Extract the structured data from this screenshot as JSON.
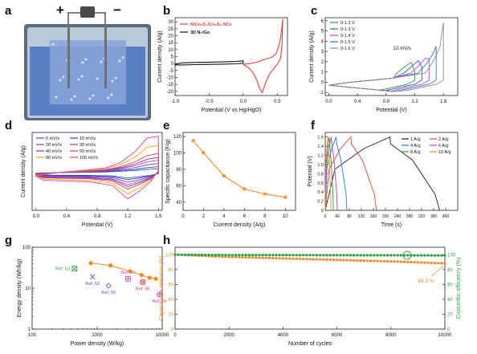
{
  "chart_data": [
    {
      "panel": "a",
      "type": "diagram",
      "letter": "a",
      "signs": {
        "plus": "+",
        "minus": "−"
      }
    },
    {
      "panel": "b",
      "type": "line",
      "letter": "b",
      "xlabel": "Potential (V vs Hg/HgO)",
      "ylabel": "Current density (A/g)",
      "xlim": [
        -1.0,
        0.65
      ],
      "ylim": [
        -23,
        33
      ],
      "xticks": [
        -1.0,
        -0.5,
        0.0,
        0.5
      ],
      "xtick_labels": [
        "-1.0",
        "-0.5",
        "0.0",
        "0.5"
      ],
      "yticks": [
        -20,
        -15,
        -10,
        -5,
        0,
        5,
        10,
        15,
        20,
        25,
        30
      ],
      "ytick_labels": [
        "-20",
        "-15",
        "-10",
        "-5",
        "0",
        "5",
        "10",
        "15",
        "20",
        "25",
        "30"
      ],
      "legend_position": "top-left",
      "series": [
        {
          "name": "NiCo₂S₄/Co₉S₈ NCs",
          "color": "#e8403a",
          "x": [
            0.0,
            0.1,
            0.2,
            0.28,
            0.35,
            0.42,
            0.48,
            0.52,
            0.55,
            0.57,
            0.58,
            0.57,
            0.55,
            0.5,
            0.44,
            0.38,
            0.32,
            0.28,
            0.24,
            0.2,
            0.15,
            0.08,
            0.0
          ],
          "y": [
            -0.5,
            0.0,
            1.0,
            2.5,
            3.5,
            4.5,
            7.0,
            12.0,
            19.0,
            27.0,
            32.0,
            14.0,
            4.0,
            -0.5,
            -4.0,
            -8.0,
            -15.0,
            -21.0,
            -18.0,
            -12.0,
            -7.0,
            -3.0,
            -0.5
          ]
        },
        {
          "name": "3D N-rGo",
          "color": "#111111",
          "x": [
            -1.0,
            -0.9,
            -0.7,
            -0.5,
            -0.3,
            -0.1,
            0.0,
            0.0,
            -0.1,
            -0.3,
            -0.5,
            -0.7,
            -0.9,
            -1.0,
            -1.0
          ],
          "y": [
            -0.5,
            0.5,
            0.8,
            1.0,
            1.2,
            1.5,
            2.0,
            0.2,
            -0.2,
            -0.4,
            -0.6,
            -0.8,
            -1.0,
            -1.0,
            -0.5
          ]
        }
      ]
    },
    {
      "panel": "c",
      "type": "line",
      "letter": "c",
      "xlabel": "Potential (V)",
      "ylabel": "Current density (A/g)",
      "annotation": "10 mV/s",
      "xlim": [
        -0.05,
        1.8
      ],
      "ylim": [
        -1.3,
        6.3
      ],
      "xticks": [
        0.0,
        0.4,
        0.8,
        1.2,
        1.6
      ],
      "xtick_labels": [
        "0.0",
        "0.4",
        "0.8",
        "1.2",
        "1.6"
      ],
      "yticks": [
        -1,
        0,
        1,
        2,
        3,
        4,
        5,
        6
      ],
      "ytick_labels": [
        "-1",
        "0",
        "1",
        "2",
        "3",
        "4",
        "5",
        "6"
      ],
      "legend_position": "top-left",
      "series": [
        {
          "name": "0-1.2 V",
          "color": "#2e9e45",
          "vmax": 1.2,
          "peak": 0.5
        },
        {
          "name": "0-1.3 V",
          "color": "#3b54c8",
          "vmax": 1.3,
          "peak": 1.0
        },
        {
          "name": "0-1.4 V",
          "color": "#c23bc2",
          "vmax": 1.4,
          "peak": 1.8
        },
        {
          "name": "0-1.5 V",
          "color": "#1f7fd6",
          "vmax": 1.5,
          "peak": 3.0
        },
        {
          "name": "0-1.6 V",
          "color": "#8a8a8a",
          "vmax": 1.6,
          "peak": 5.3
        }
      ]
    },
    {
      "panel": "d",
      "type": "line",
      "letter": "d",
      "xlabel": "Potential (V)",
      "ylabel": "Current density (A/g)",
      "xlim": [
        -0.05,
        1.65
      ],
      "ylim": [
        -9.5,
        11
      ],
      "xticks": [
        0.0,
        0.4,
        0.8,
        1.2,
        1.6
      ],
      "xtick_labels": [
        "0.0",
        "0.4",
        "0.8",
        "1.2",
        "1.6"
      ],
      "legend_position": "top-left",
      "series": [
        {
          "name": "5 mV/s",
          "color": "#3b54c8",
          "scale": 0.15
        },
        {
          "name": "10 mV/s",
          "color": "#1f3fb5",
          "scale": 0.22
        },
        {
          "name": "20 mV/s",
          "color": "#5b4fa8",
          "scale": 0.32
        },
        {
          "name": "30 mV/s",
          "color": "#c23bc2",
          "scale": 0.42
        },
        {
          "name": "40 mV/s",
          "color": "#8a2be2",
          "scale": 0.5
        },
        {
          "name": "50 mV/s",
          "color": "#e03a3a",
          "scale": 0.6
        },
        {
          "name": "80 mV/s",
          "color": "#d7b400",
          "scale": 0.8
        },
        {
          "name": "100 mV/s",
          "color": "#e13aa6",
          "scale": 1.0
        }
      ]
    },
    {
      "panel": "e",
      "type": "line",
      "letter": "e",
      "xlabel": "Current density  (A/g)",
      "ylabel": "Specific capacitance (F/g)",
      "xlim": [
        0,
        11
      ],
      "ylim": [
        30,
        125
      ],
      "xticks": [
        0,
        2,
        4,
        6,
        8,
        10
      ],
      "xtick_labels": [
        "0",
        "2",
        "4",
        "6",
        "8",
        "10"
      ],
      "yticks": [
        40,
        60,
        80,
        100,
        120
      ],
      "ytick_labels": [
        "40",
        "60",
        "80",
        "100",
        "120"
      ],
      "series": [
        {
          "name": "",
          "color": "#f08a24",
          "x": [
            1,
            2,
            4,
            6,
            8,
            10
          ],
          "y": [
            115,
            100,
            72,
            56,
            50,
            46
          ]
        }
      ]
    },
    {
      "panel": "f",
      "type": "line",
      "letter": "f",
      "xlabel": "Time (s)",
      "ylabel": "Potential (V)",
      "xlim": [
        0,
        440
      ],
      "ylim": [
        0,
        1.7
      ],
      "xticks": [
        0,
        40,
        80,
        120,
        160,
        200,
        240,
        280,
        320,
        360,
        400
      ],
      "xtick_labels": [
        "0",
        "40",
        "80",
        "120",
        "160",
        "200",
        "240",
        "280",
        "320",
        "360",
        "400"
      ],
      "yticks": [
        0,
        0.2,
        0.4,
        0.6,
        0.8,
        1.0,
        1.2,
        1.4,
        1.6
      ],
      "ytick_labels": [
        "0",
        "0.2",
        "0.4",
        "0.6",
        "0.8",
        "1.0",
        "1.2",
        "1.4",
        "1.6"
      ],
      "legend_position": "top-right",
      "series": [
        {
          "name": "1 A/g",
          "color": "#222222",
          "tc": 215,
          "td": 380
        },
        {
          "name": "2 A/g",
          "color": "#e8403a",
          "tc": 85,
          "td": 170
        },
        {
          "name": "4 A/g",
          "color": "#1f7fd6",
          "tc": 36,
          "td": 72
        },
        {
          "name": "6 A/g",
          "color": "#c23bc2",
          "tc": 20,
          "td": 40
        },
        {
          "name": "8 A/g",
          "color": "#2e9e45",
          "tc": 13,
          "td": 27
        },
        {
          "name": "10 A/g",
          "color": "#f08a24",
          "tc": 9,
          "td": 19
        }
      ]
    },
    {
      "panel": "g",
      "type": "scatter",
      "letter": "g",
      "xlabel": "Power density (W/kg)",
      "ylabel": "Energy density (Wh/kg)",
      "xscale": "log",
      "yscale": "log",
      "xlim": [
        100,
        10000
      ],
      "ylim": [
        1,
        100
      ],
      "xtick_labels": [
        "100",
        "1000",
        "10000"
      ],
      "ytick_labels": [
        "1",
        "10",
        "100"
      ],
      "series": [
        {
          "name": "",
          "color": "#f08a24",
          "x": [
            800,
            1600,
            3200,
            4800,
            6400,
            8000
          ],
          "y": [
            41,
            36,
            26,
            21,
            18,
            17
          ]
        }
      ],
      "references": [
        {
          "label": "Ref. 53",
          "color": "#2e9e45",
          "marker": "square-x",
          "x": 450,
          "y": 30,
          "label_pos": "left"
        },
        {
          "label": "Ref. 52",
          "color": "#3b54c8",
          "marker": "x",
          "x": 850,
          "y": 19,
          "label_pos": "below"
        },
        {
          "label": "Ref. 57",
          "color": "#c23bc2",
          "marker": "square-cross",
          "x": 3000,
          "y": 17,
          "label_pos": "above"
        },
        {
          "label": "Ref. 56",
          "color": "#3b54c8",
          "marker": "diamond",
          "x": 1500,
          "y": 11.5,
          "label_pos": "below"
        },
        {
          "label": "Ref. 55",
          "color": "#e03a3a",
          "marker": "circle-x",
          "x": 5000,
          "y": 14,
          "label_pos": "below"
        },
        {
          "label": "Ref. 54",
          "color": "#c23bc2",
          "marker": "circle-plus",
          "x": 9000,
          "y": 7,
          "label_pos": "below"
        }
      ]
    },
    {
      "panel": "h",
      "type": "line",
      "letter": "h",
      "xlabel": "Number of cycles",
      "ylabel": "Capacitance retention (%)",
      "ylabel_right": "Coulombic efficiency (%)",
      "annotation": "88.3 %",
      "xlim": [
        0,
        10000
      ],
      "ylim": [
        0,
        110
      ],
      "ylim_right": [
        0,
        110
      ],
      "xticks": [
        0,
        2000,
        4000,
        6000,
        8000,
        10000
      ],
      "xtick_labels": [
        "0",
        "2000",
        "4000",
        "6000",
        "8000",
        "10000"
      ],
      "yticks": [
        0,
        20,
        40,
        60,
        80,
        100
      ],
      "ytick_labels": [
        "0",
        "20",
        "40",
        "60",
        "80",
        "100"
      ],
      "series": [
        {
          "name": "",
          "axis": "left",
          "color": "#f08a24",
          "x": [
            0,
            2000,
            4000,
            6000,
            8000,
            10000
          ],
          "y": [
            100,
            97,
            95,
            93,
            91,
            88.3
          ]
        },
        {
          "name": "",
          "axis": "right",
          "color": "#2e9e45",
          "x": [
            0,
            2000,
            4000,
            6000,
            8000,
            10000
          ],
          "y": [
            100,
            99.5,
            99.5,
            99.3,
            99.2,
            99.0
          ]
        }
      ]
    }
  ]
}
